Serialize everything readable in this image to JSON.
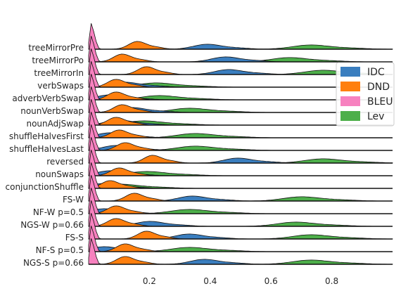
{
  "chart_data": {
    "type": "ridgeline",
    "title": "",
    "xlabel": "",
    "ylabel": "",
    "xlim": [
      0,
      1
    ],
    "xticks": [
      "0.2",
      "0.4",
      "0.6",
      "0.8"
    ],
    "grid": false,
    "legend_position": "right",
    "legend": [
      {
        "name": "IDC",
        "color": "#3a7ebf"
      },
      {
        "name": "DND",
        "color": "#ff7f0e"
      },
      {
        "name": "BLEU",
        "color": "#f781bf"
      },
      {
        "name": "Lev",
        "color": "#4daf4a"
      }
    ],
    "rows": [
      {
        "label": "treeMirrorPre",
        "peaks": {
          "BLEU": 0.01,
          "DND": 0.16,
          "IDC": 0.39,
          "Lev": 0.73
        }
      },
      {
        "label": "treeMirrorPo",
        "peaks": {
          "BLEU": 0.01,
          "DND": 0.11,
          "IDC": 0.45,
          "Lev": 0.66
        }
      },
      {
        "label": "treeMirrorIn",
        "peaks": {
          "BLEU": 0.01,
          "DND": 0.19,
          "IDC": 0.46,
          "Lev": 0.77
        }
      },
      {
        "label": "verbSwaps",
        "peaks": {
          "BLEU": 0.01,
          "DND": 0.09,
          "IDC": 0.12,
          "Lev": 0.22
        }
      },
      {
        "label": "adverbVerbSwap",
        "peaks": {
          "BLEU": 0.01,
          "DND": 0.09,
          "IDC": 0.07,
          "Lev": 0.23
        }
      },
      {
        "label": "nounVerbSwap",
        "peaks": {
          "BLEU": 0.01,
          "DND": 0.11,
          "IDC": 0.14,
          "Lev": 0.33
        }
      },
      {
        "label": "nounAdjSwap",
        "peaks": {
          "BLEU": 0.01,
          "DND": 0.09,
          "IDC": 0.1,
          "Lev": 0.18
        }
      },
      {
        "label": "shuffleHalvesFirst",
        "peaks": {
          "BLEU": 0.01,
          "DND": 0.1,
          "IDC": 0.07,
          "Lev": 0.35
        }
      },
      {
        "label": "shuffleHalvesLast",
        "peaks": {
          "BLEU": 0.01,
          "DND": 0.12,
          "IDC": 0.09,
          "Lev": 0.35
        }
      },
      {
        "label": "reversed",
        "peaks": {
          "BLEU": 0.01,
          "DND": 0.21,
          "IDC": 0.49,
          "Lev": 0.77
        }
      },
      {
        "label": "nounSwaps",
        "peaks": {
          "BLEU": 0.01,
          "DND": 0.1,
          "IDC": 0.07,
          "Lev": 0.19
        }
      },
      {
        "label": "conjunctionShuffle",
        "peaks": {
          "BLEU": 0.01,
          "DND": 0.07,
          "IDC": 0.05,
          "Lev": 0.1
        }
      },
      {
        "label": "FS-W",
        "peaks": {
          "BLEU": 0.01,
          "DND": 0.15,
          "IDC": 0.34,
          "Lev": 0.7
        }
      },
      {
        "label": "NF-W p=0.5",
        "peaks": {
          "BLEU": 0.01,
          "DND": 0.09,
          "IDC": 0.05,
          "Lev": 0.33
        }
      },
      {
        "label": "NGS-W p=0.66",
        "peaks": {
          "BLEU": 0.01,
          "DND": 0.09,
          "IDC": 0.2,
          "Lev": 0.68
        }
      },
      {
        "label": "FS-S",
        "peaks": {
          "BLEU": 0.01,
          "DND": 0.19,
          "IDC": 0.33,
          "Lev": 0.73
        }
      },
      {
        "label": "NF-S p=0.5",
        "peaks": {
          "BLEU": 0.01,
          "DND": 0.12,
          "IDC": 0.05,
          "Lev": 0.33
        }
      },
      {
        "label": "NGS-S p=0.66",
        "peaks": {
          "BLEU": 0.01,
          "DND": 0.12,
          "IDC": 0.38,
          "Lev": 0.73
        }
      }
    ]
  }
}
